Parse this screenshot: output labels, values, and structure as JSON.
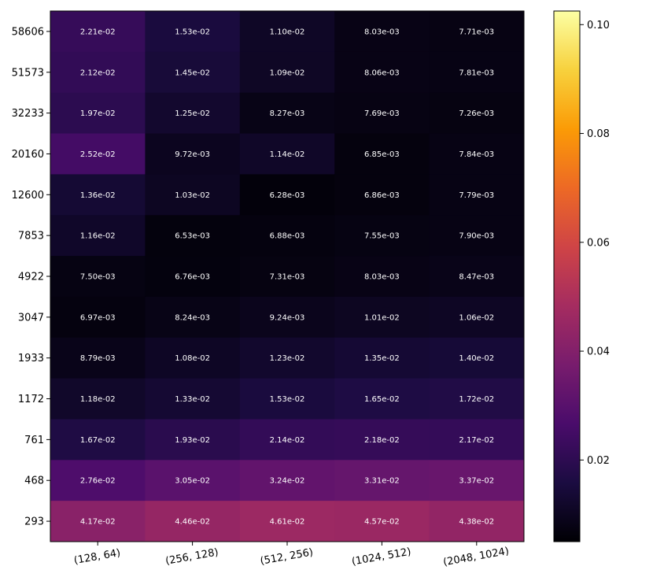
{
  "chart_data": {
    "type": "heatmap",
    "title": "",
    "xlabel": "",
    "ylabel": "",
    "x_categories": [
      "(128, 64)",
      "(256, 128)",
      "(512, 256)",
      "(1024, 512)",
      "(2048, 1024)"
    ],
    "y_categories": [
      "58606",
      "51573",
      "32233",
      "20160",
      "12600",
      "7853",
      "4922",
      "3047",
      "1933",
      "1172",
      "761",
      "468",
      "293"
    ],
    "values": [
      [
        0.0221,
        0.0153,
        0.011,
        0.00803,
        0.00771
      ],
      [
        0.0212,
        0.0145,
        0.0109,
        0.00806,
        0.00781
      ],
      [
        0.0197,
        0.0125,
        0.00827,
        0.00769,
        0.00726
      ],
      [
        0.0252,
        0.00972,
        0.0114,
        0.00685,
        0.00784
      ],
      [
        0.0136,
        0.0103,
        0.00628,
        0.00686,
        0.00779
      ],
      [
        0.0116,
        0.00653,
        0.00688,
        0.00755,
        0.0079
      ],
      [
        0.0075,
        0.00676,
        0.00731,
        0.00803,
        0.00847
      ],
      [
        0.00697,
        0.00824,
        0.00924,
        0.0101,
        0.0106
      ],
      [
        0.00879,
        0.0108,
        0.0123,
        0.0135,
        0.014
      ],
      [
        0.0118,
        0.0133,
        0.0153,
        0.0165,
        0.0172
      ],
      [
        0.0167,
        0.0193,
        0.0214,
        0.0218,
        0.0217
      ],
      [
        0.0276,
        0.0305,
        0.0324,
        0.0331,
        0.0337
      ],
      [
        0.0417,
        0.0446,
        0.0461,
        0.0457,
        0.0438
      ]
    ],
    "cell_labels": [
      [
        "2.21e-02",
        "1.53e-02",
        "1.10e-02",
        "8.03e-03",
        "7.71e-03"
      ],
      [
        "2.12e-02",
        "1.45e-02",
        "1.09e-02",
        "8.06e-03",
        "7.81e-03"
      ],
      [
        "1.97e-02",
        "1.25e-02",
        "8.27e-03",
        "7.69e-03",
        "7.26e-03"
      ],
      [
        "2.52e-02",
        "9.72e-03",
        "1.14e-02",
        "6.85e-03",
        "7.84e-03"
      ],
      [
        "1.36e-02",
        "1.03e-02",
        "6.28e-03",
        "6.86e-03",
        "7.79e-03"
      ],
      [
        "1.16e-02",
        "6.53e-03",
        "6.88e-03",
        "7.55e-03",
        "7.90e-03"
      ],
      [
        "7.50e-03",
        "6.76e-03",
        "7.31e-03",
        "8.03e-03",
        "8.47e-03"
      ],
      [
        "6.97e-03",
        "8.24e-03",
        "9.24e-03",
        "1.01e-02",
        "1.06e-02"
      ],
      [
        "8.79e-03",
        "1.08e-02",
        "1.23e-02",
        "1.35e-02",
        "1.40e-02"
      ],
      [
        "1.18e-02",
        "1.33e-02",
        "1.53e-02",
        "1.65e-02",
        "1.72e-02"
      ],
      [
        "1.67e-02",
        "1.93e-02",
        "2.14e-02",
        "2.18e-02",
        "2.17e-02"
      ],
      [
        "2.76e-02",
        "3.05e-02",
        "3.24e-02",
        "3.31e-02",
        "3.37e-02"
      ],
      [
        "4.17e-02",
        "4.46e-02",
        "4.61e-02",
        "4.57e-02",
        "4.38e-02"
      ]
    ],
    "colormap": "inferno",
    "colormap_stops": [
      "#000004",
      "#1b0c41",
      "#4a0c6b",
      "#781c6d",
      "#a52c60",
      "#cf4446",
      "#ed6925",
      "#fb9b06",
      "#f7d13d",
      "#fcffa4"
    ],
    "colorbar": {
      "range": [
        0.005,
        0.1025
      ],
      "ticks": [
        0.02,
        0.04,
        0.06,
        0.08,
        0.1
      ],
      "tick_labels": [
        "0.02",
        "0.04",
        "0.06",
        "0.08",
        "0.10"
      ],
      "placement": "right"
    },
    "x_tick_rotation_deg": -10,
    "grid": false,
    "legend": "none",
    "cell_label_color": "#ffffff"
  }
}
